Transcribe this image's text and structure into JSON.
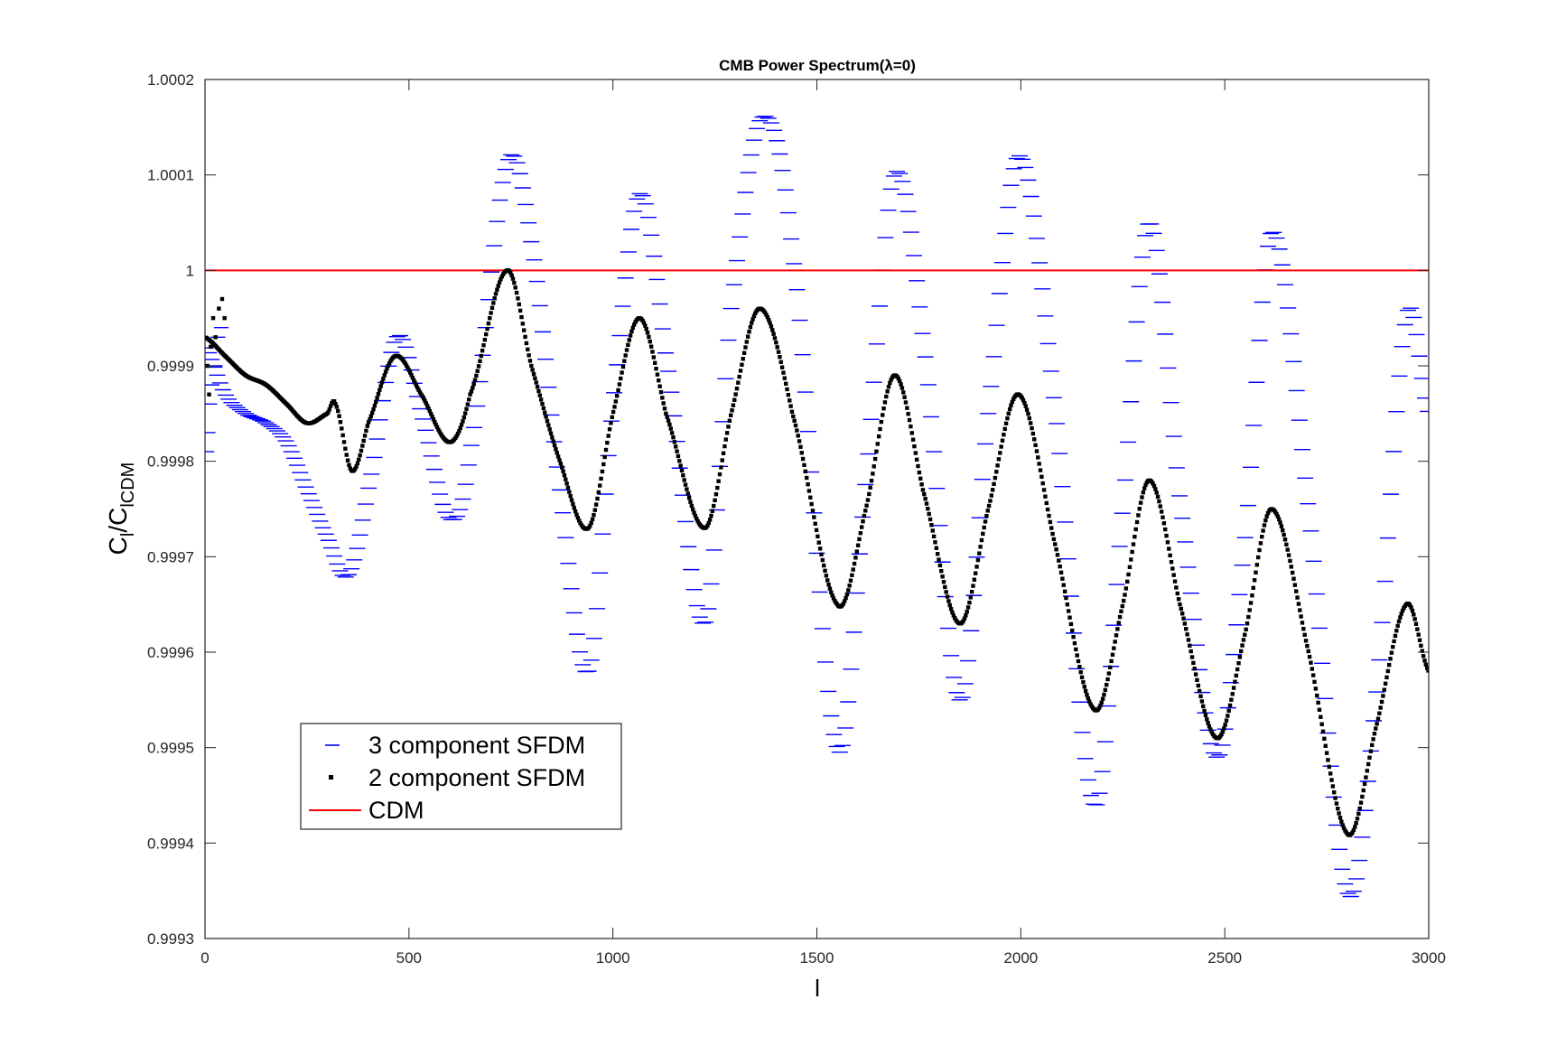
{
  "chart_data": {
    "type": "line",
    "title": "CMB Power Spectrum(λ=0)",
    "xlabel": "l",
    "ylabel": "C_l/C_lCDM",
    "ylabel_main": "C",
    "ylabel_sub1": "l",
    "ylabel_slash": "/C",
    "ylabel_sub2": "lCDM",
    "xlim": [
      0,
      3000
    ],
    "ylim": [
      0.9993,
      1.0002
    ],
    "xticks": [
      0,
      500,
      1000,
      1500,
      2000,
      2500,
      3000
    ],
    "xtick_labels": [
      "0",
      "500",
      "1000",
      "1500",
      "2000",
      "2500",
      "3000"
    ],
    "yticks": [
      0.9993,
      0.9994,
      0.9995,
      0.9996,
      0.9997,
      0.9998,
      0.9999,
      1,
      1.0001,
      1.0002
    ],
    "ytick_labels": [
      "0.9993",
      "0.9994",
      "0.9995",
      "0.9996",
      "0.9997",
      "0.9998",
      "0.9999",
      "1",
      "1.0001",
      "1.0002"
    ],
    "grid": false,
    "legend_position": "bottom-left",
    "series": [
      {
        "name": "3 component SFDM",
        "marker": "dash",
        "color": "#0000ff",
        "x": [
          0,
          50,
          100,
          150,
          200,
          250,
          300,
          350,
          400,
          470,
          530,
          600,
          650,
          740,
          800,
          870,
          940,
          1000,
          1065,
          1130,
          1225,
          1290,
          1365,
          1440,
          1550,
          1620,
          1690,
          1760,
          1850,
          1920,
          1995,
          2080,
          2180,
          2250,
          2315,
          2390,
          2480,
          2550,
          2615,
          2700,
          2800,
          2870,
          2945,
          3000
        ],
        "y": [
          0.99992,
          0.99987,
          0.99985,
          0.99984,
          0.99982,
          0.99977,
          0.99972,
          0.99968,
          0.99977,
          0.99993,
          0.99985,
          0.99974,
          0.99981,
          1.00011,
          1.00003,
          0.99977,
          0.99958,
          0.99986,
          1.00008,
          0.99991,
          0.99963,
          0.99996,
          1.00016,
          1.00002,
          0.9995,
          0.99978,
          1.0001,
          0.99993,
          0.99955,
          0.99985,
          1.00012,
          0.99987,
          0.99944,
          0.99975,
          1.00005,
          0.99976,
          0.99949,
          0.99972,
          1.00004,
          0.99977,
          0.99935,
          0.99955,
          0.99995,
          0.99985
        ]
      },
      {
        "name": "2 component SFDM",
        "marker": "dot",
        "color": "#000000",
        "x": [
          0,
          50,
          100,
          150,
          200,
          250,
          300,
          320,
          360,
          400,
          465,
          530,
          600,
          650,
          740,
          800,
          870,
          940,
          1000,
          1065,
          1130,
          1225,
          1290,
          1360,
          1440,
          1550,
          1620,
          1690,
          1760,
          1850,
          1920,
          1995,
          2080,
          2180,
          2250,
          2315,
          2390,
          2480,
          2550,
          2615,
          2700,
          2800,
          2870,
          2945,
          3000
        ],
        "y": [
          0.99993,
          0.99991,
          0.99989,
          0.99988,
          0.99986,
          0.99984,
          0.99985,
          0.99986,
          0.99979,
          0.99984,
          0.99991,
          0.99987,
          0.99982,
          0.99987,
          1.0,
          0.9999,
          0.9998,
          0.99973,
          0.99985,
          0.99995,
          0.99985,
          0.99973,
          0.99985,
          0.99996,
          0.99985,
          0.99965,
          0.99975,
          0.99989,
          0.99977,
          0.99963,
          0.99975,
          0.99987,
          0.99972,
          0.99954,
          0.99965,
          0.99978,
          0.99965,
          0.99951,
          0.99962,
          0.99975,
          0.99961,
          0.99941,
          0.99952,
          0.99965,
          0.99958
        ]
      },
      {
        "name": "CDM",
        "marker": "line",
        "color": "#ff0000",
        "x": [
          0,
          3000
        ],
        "y": [
          1,
          1
        ]
      }
    ]
  }
}
